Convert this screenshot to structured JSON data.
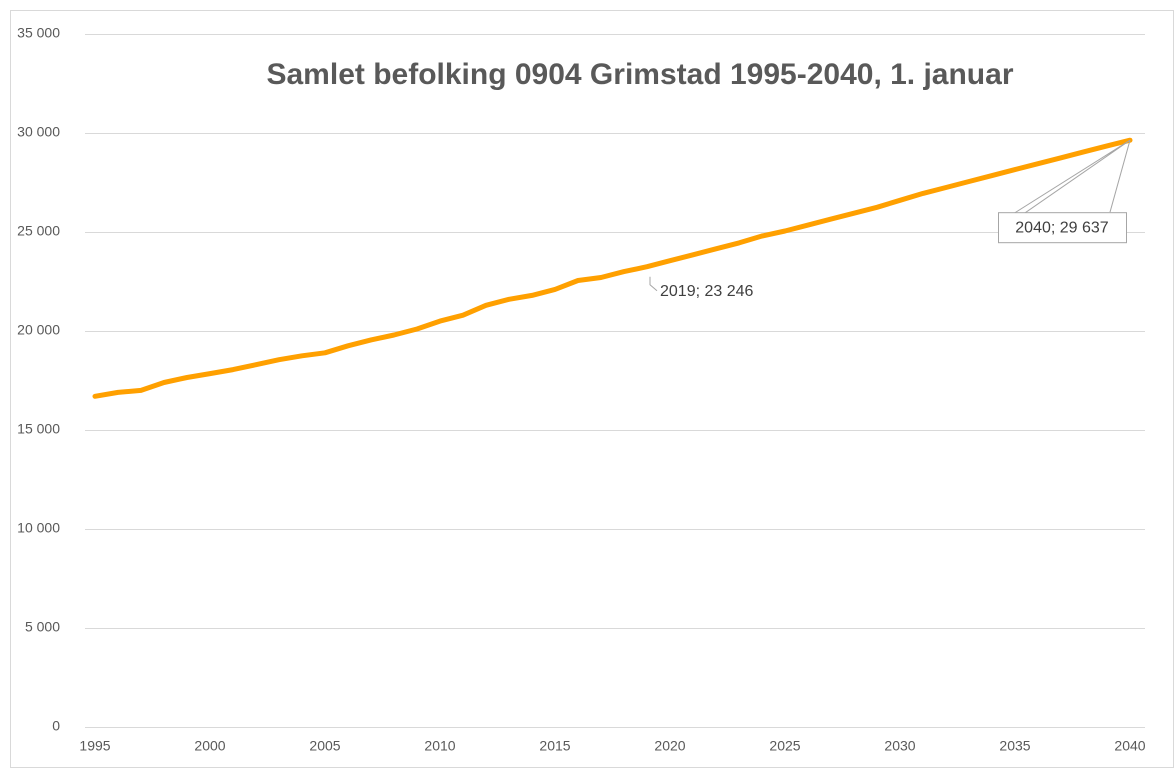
{
  "chart_data": {
    "type": "line",
    "title": "Samlet befolking 0904 Grimstad 1995-2040, 1. januar",
    "x": [
      1995,
      1996,
      1997,
      1998,
      1999,
      2000,
      2001,
      2002,
      2003,
      2004,
      2005,
      2006,
      2007,
      2008,
      2009,
      2010,
      2011,
      2012,
      2013,
      2014,
      2015,
      2016,
      2017,
      2018,
      2019,
      2020,
      2021,
      2022,
      2023,
      2024,
      2025,
      2026,
      2027,
      2028,
      2029,
      2030,
      2031,
      2032,
      2033,
      2034,
      2035,
      2036,
      2037,
      2038,
      2039,
      2040
    ],
    "series": [
      {
        "color": "#ffa000",
        "values": [
          16700,
          16900,
          17000,
          17400,
          17650,
          17850,
          18050,
          18300,
          18550,
          18750,
          18900,
          19250,
          19550,
          19800,
          20100,
          20500,
          20800,
          21300,
          21600,
          21800,
          22100,
          22550,
          22700,
          23000,
          23246,
          23550,
          23850,
          24150,
          24450,
          24800,
          25050,
          25350,
          25650,
          25950,
          26250,
          26600,
          26950,
          27250,
          27550,
          27850,
          28150,
          28450,
          28750,
          29050,
          29350,
          29637
        ],
        "value_labels": [
          null,
          null,
          null,
          null,
          null,
          null,
          null,
          null,
          null,
          null,
          null,
          null,
          null,
          null,
          null,
          null,
          null,
          null,
          null,
          null,
          null,
          null,
          null,
          null,
          "2019; 23 246",
          null,
          null,
          null,
          null,
          null,
          null,
          null,
          null,
          null,
          null,
          null,
          null,
          null,
          null,
          null,
          null,
          null,
          null,
          null,
          null,
          "2040; 29 637"
        ]
      }
    ],
    "xlim": [
      1995,
      2040
    ],
    "xticks": [
      1995,
      2000,
      2005,
      2010,
      2015,
      2020,
      2025,
      2030,
      2035,
      2040
    ],
    "ylim": [
      0,
      35000
    ],
    "yticks": [
      0,
      {
        "value": 5000,
        "label": "5 000"
      },
      {
        "value": 10000,
        "label": "10 000"
      },
      {
        "value": 15000,
        "label": "15 000"
      },
      {
        "value": 20000,
        "label": "20 000"
      },
      {
        "value": 25000,
        "label": "25 000"
      },
      {
        "value": 30000,
        "label": "30 000"
      },
      {
        "value": 35000,
        "label": "35 000"
      }
    ],
    "grid": true
  }
}
